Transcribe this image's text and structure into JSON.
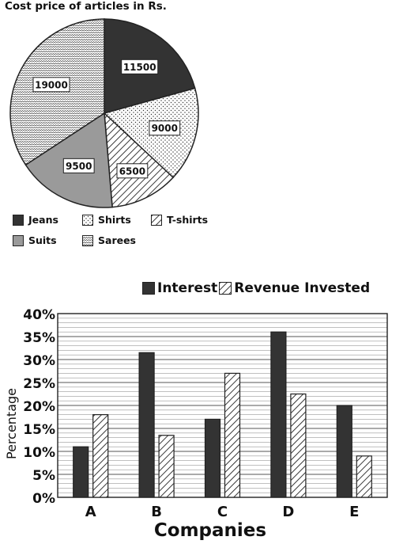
{
  "chart_data": [
    {
      "type": "pie",
      "title": "Cost price of articles in Rs.",
      "categories": [
        "Jeans",
        "Shirts",
        "T-shirts",
        "Suits",
        "Sarees"
      ],
      "values": [
        11500,
        9000,
        6500,
        9500,
        19000
      ],
      "data_labels": [
        "11500",
        "9000",
        "6500",
        "9500",
        "19000"
      ],
      "legend": [
        "Jeans",
        "Shirts",
        "T-shirts",
        "Suits",
        "Sarees"
      ],
      "legend_position": "bottom",
      "colors": {
        "Jeans": "#333333",
        "Shirts": "#ffffff",
        "T-shirts": "#ffffff",
        "Suits": "#9a9a9a",
        "Sarees": "#ffffff"
      },
      "patterns": {
        "Jeans": "solid",
        "Shirts": "dots",
        "T-shirts": "diagonal-lines",
        "Suits": "solid",
        "Sarees": "zigzag"
      }
    },
    {
      "type": "bar",
      "categories": [
        "A",
        "B",
        "C",
        "D",
        "E"
      ],
      "series": [
        {
          "name": "Interest",
          "values": [
            11,
            31.5,
            17,
            36,
            20
          ],
          "color": "#333333",
          "pattern": "solid"
        },
        {
          "name": "Revenue Invested",
          "values": [
            18,
            13.5,
            27,
            22.5,
            9
          ],
          "color": "#ffffff",
          "pattern": "diagonal-lines"
        }
      ],
      "xlabel": "Companies",
      "ylabel": "Percentage",
      "ylim": [
        0,
        40
      ],
      "yticks": [
        "0%",
        "5%",
        "10%",
        "15%",
        "20%",
        "25%",
        "30%",
        "35%",
        "40%"
      ],
      "grid": true,
      "legend_position": "top"
    }
  ]
}
